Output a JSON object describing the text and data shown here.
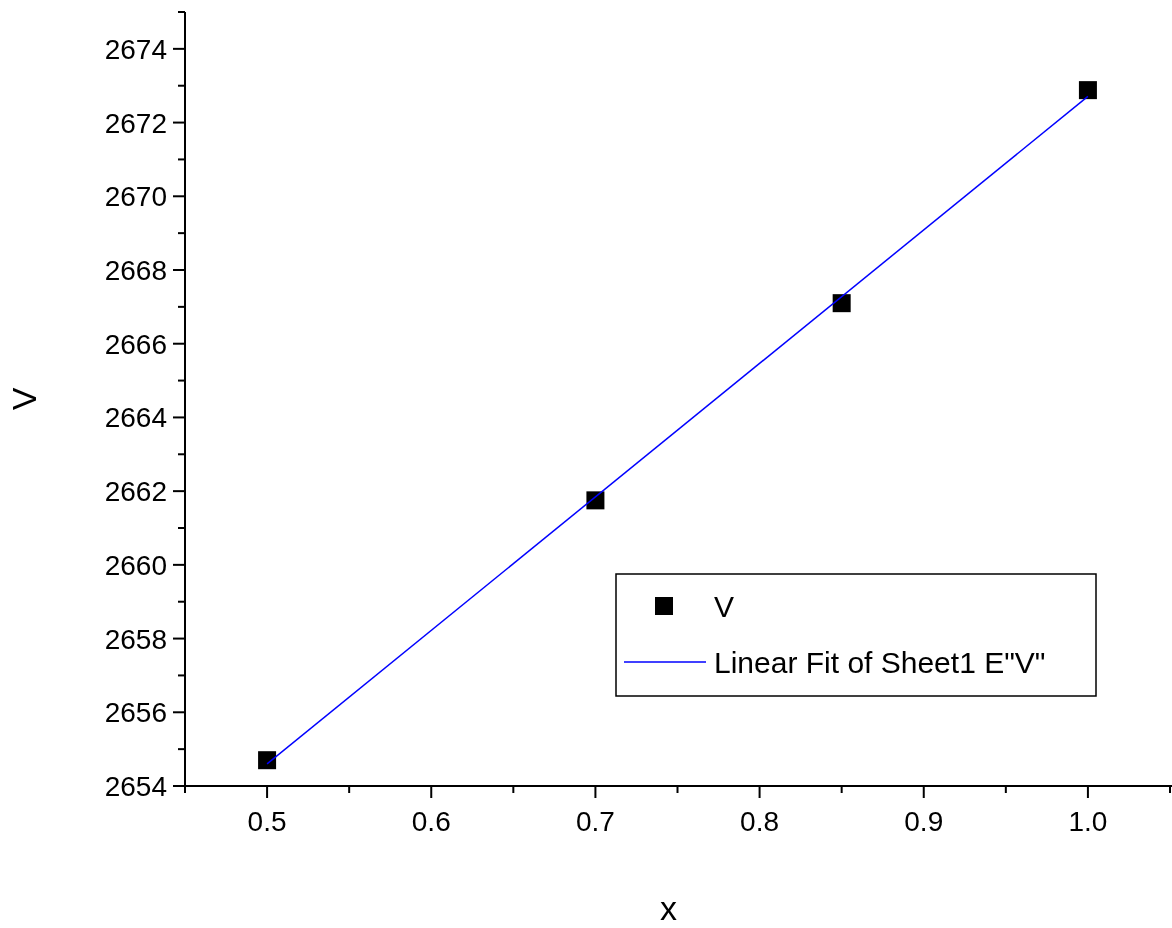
{
  "chart_data": {
    "type": "scatter",
    "xlabel": "x",
    "ylabel": "V",
    "xlim": [
      0.45,
      1.05
    ],
    "ylim": [
      2654,
      2675
    ],
    "xticks": [
      {
        "value": 0.45,
        "label": null
      },
      0.5,
      {
        "value": 0.55,
        "label": null
      },
      0.6,
      {
        "value": 0.65,
        "label": null
      },
      0.7,
      {
        "value": 0.75,
        "label": null
      },
      0.8,
      {
        "value": 0.85,
        "label": null
      },
      0.9,
      {
        "value": 0.95,
        "label": null
      },
      {
        "value": 1.0,
        "label": "1.0"
      },
      {
        "value": 1.05,
        "label": null
      }
    ],
    "yticks": [
      2654,
      {
        "value": 2655,
        "label": null
      },
      2656,
      {
        "value": 2657,
        "label": null
      },
      2658,
      {
        "value": 2659,
        "label": null
      },
      2660,
      {
        "value": 2661,
        "label": null
      },
      2662,
      {
        "value": 2663,
        "label": null
      },
      2664,
      {
        "value": 2665,
        "label": null
      },
      2666,
      {
        "value": 2667,
        "label": null
      },
      2668,
      {
        "value": 2669,
        "label": null
      },
      2670,
      {
        "value": 2671,
        "label": null
      },
      2672,
      {
        "value": 2673,
        "label": null
      },
      2674,
      {
        "value": 2675,
        "label": null
      }
    ],
    "grid": false,
    "legend": "bottom right",
    "series": [
      {
        "name": "V",
        "marker": "square",
        "color": "#000000",
        "x": [
          0.5,
          0.7,
          0.85,
          1.0
        ],
        "values": [
          2654.7,
          2661.75,
          2667.1,
          2672.88
        ]
      },
      {
        "name": "Linear Fit of Sheet1 E\"V\"",
        "type": "line",
        "marker": "none",
        "line_style": "solid",
        "color": "#0000ff",
        "x": [
          0.5,
          1.0
        ],
        "values": [
          2654.6,
          2672.71
        ]
      }
    ]
  }
}
